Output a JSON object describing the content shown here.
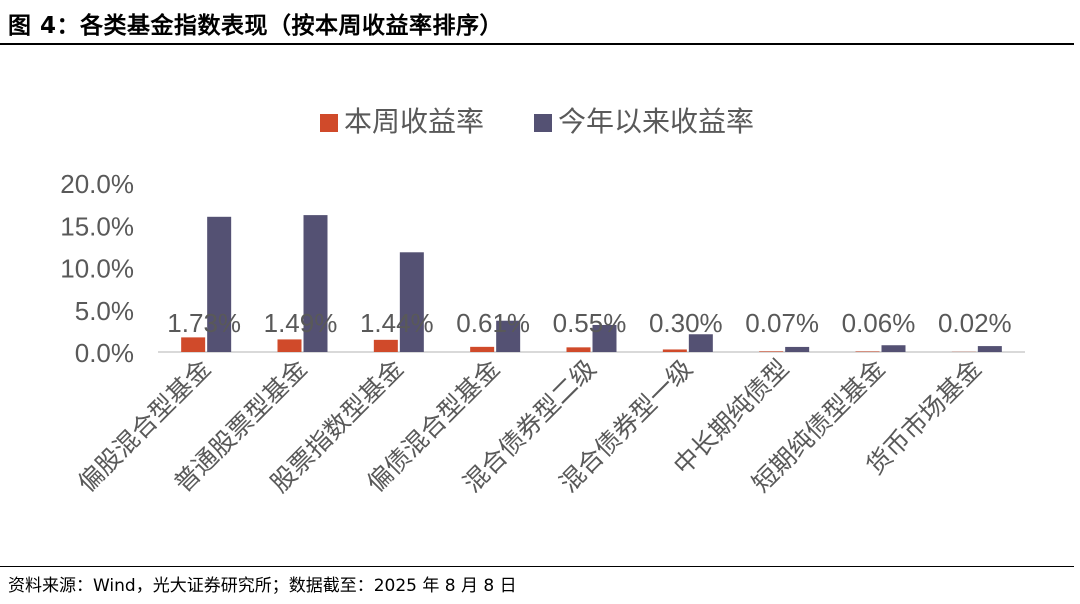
{
  "figure": {
    "title": "图 4：各类基金指数表现（按本周收益率排序）",
    "source": "资料来源：Wind，光大证券研究所；数据截至：2025 年 8 月 8 日"
  },
  "colors": {
    "weekly": "#D04A2A",
    "ytd": "#545173",
    "axis": "#D9D9D9",
    "text": "#595959"
  },
  "chart_data": {
    "type": "bar",
    "categories": [
      "偏股混合型基金",
      "普通股票型基金",
      "股票指数型基金",
      "偏债混合型基金",
      "混合债券型二级",
      "混合债券型一级",
      "中长期纯债型",
      "短期纯债型基金",
      "货币市场基金"
    ],
    "series": [
      {
        "name": "本周收益率",
        "values": [
          1.73,
          1.49,
          1.44,
          0.61,
          0.55,
          0.3,
          0.07,
          0.06,
          0.02
        ],
        "labels": [
          "1.73%",
          "1.49%",
          "1.44%",
          "0.61%",
          "0.55%",
          "0.30%",
          "0.07%",
          "0.06%",
          "0.02%"
        ]
      },
      {
        "name": "今年以来收益率",
        "values": [
          16.0,
          16.2,
          11.8,
          3.7,
          3.2,
          2.1,
          0.6,
          0.8,
          0.7
        ]
      }
    ],
    "yticks": [
      "0.0%",
      "5.0%",
      "10.0%",
      "15.0%",
      "20.0%"
    ],
    "ylim": [
      0,
      20
    ],
    "legend_position": "top",
    "grid": false
  }
}
